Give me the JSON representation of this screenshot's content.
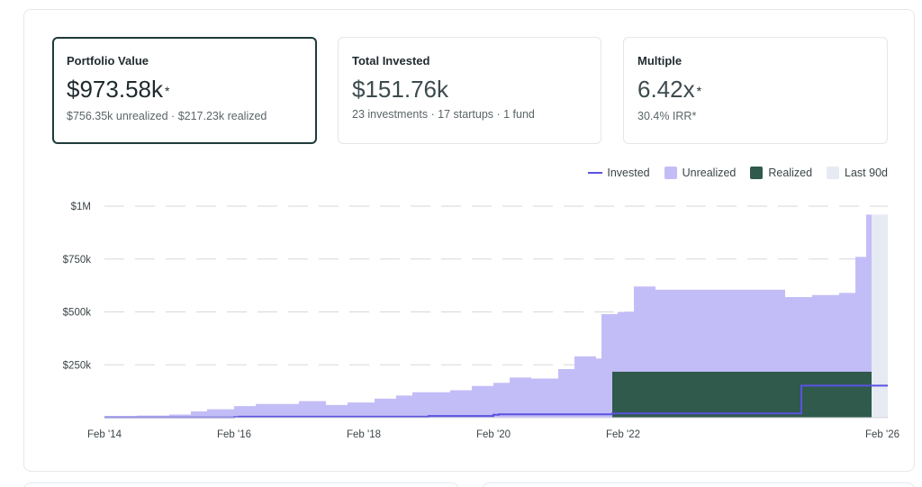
{
  "cards": [
    {
      "label": "Portfolio Value",
      "value": "$973.58k",
      "asterisk": "*",
      "sub": "$756.35k unrealized  · $217.23k realized",
      "selected": true
    },
    {
      "label": "Total Invested",
      "value": "$151.76k",
      "asterisk": "",
      "sub": "23 investments · 17 startups · 1 fund",
      "selected": false
    },
    {
      "label": "Multiple",
      "value": "6.42x",
      "asterisk": "*",
      "sub": "30.4% IRR*",
      "selected": false
    }
  ],
  "legend": {
    "invested": "Invested",
    "unrealized": "Unrealized",
    "realized": "Realized",
    "last90": "Last 90d"
  },
  "colors": {
    "invested": "#5a52e0",
    "unrealized": "#c3bdf7",
    "realized": "#2f5a4c",
    "last90": "#e6eaf3",
    "grid": "#d4d7da"
  },
  "chart_data": {
    "type": "area",
    "title": "",
    "xlabel": "",
    "ylabel": "",
    "x_ticks": [
      "Feb '14",
      "Feb '16",
      "Feb '18",
      "Feb '20",
      "Feb '22",
      "Feb '26"
    ],
    "y_ticks": [
      "$250k",
      "$500k",
      "$750k",
      "$1M"
    ],
    "ylim": [
      0,
      1000000
    ],
    "xlim": [
      "2014-02",
      "2026-03"
    ],
    "legend_position": "top-right",
    "grid": "horizontal-dashed",
    "last_90d_start": "2025-12",
    "series": [
      {
        "name": "Unrealized",
        "style": "step-area",
        "points": [
          [
            "2014-02",
            8000
          ],
          [
            "2014-08",
            10000
          ],
          [
            "2015-02",
            15000
          ],
          [
            "2015-06",
            30000
          ],
          [
            "2015-09",
            40000
          ],
          [
            "2016-02",
            55000
          ],
          [
            "2016-06",
            65000
          ],
          [
            "2017-02",
            78000
          ],
          [
            "2017-07",
            60000
          ],
          [
            "2017-11",
            72000
          ],
          [
            "2018-04",
            90000
          ],
          [
            "2018-08",
            105000
          ],
          [
            "2018-11",
            120000
          ],
          [
            "2019-06",
            130000
          ],
          [
            "2019-10",
            150000
          ],
          [
            "2020-02",
            165000
          ],
          [
            "2020-05",
            190000
          ],
          [
            "2020-09",
            185000
          ],
          [
            "2021-02",
            230000
          ],
          [
            "2021-05",
            290000
          ],
          [
            "2021-09",
            280000
          ],
          [
            "2021-10",
            490000
          ],
          [
            "2022-01",
            500000
          ],
          [
            "2022-04",
            620000
          ],
          [
            "2022-08",
            605000
          ],
          [
            "2023-04",
            605000
          ],
          [
            "2024-01",
            605000
          ],
          [
            "2024-08",
            570000
          ],
          [
            "2025-01",
            580000
          ],
          [
            "2025-06",
            590000
          ],
          [
            "2025-09",
            760000
          ],
          [
            "2025-11",
            960000
          ]
        ]
      },
      {
        "name": "Realized",
        "style": "step-area",
        "points": [
          [
            "2014-02",
            0
          ],
          [
            "2021-12",
            217230
          ],
          [
            "2025-12",
            0
          ]
        ]
      },
      {
        "name": "Invested",
        "style": "step-line",
        "points": [
          [
            "2014-02",
            1000
          ],
          [
            "2016-02",
            3000
          ],
          [
            "2016-03",
            5000
          ],
          [
            "2019-02",
            8000
          ],
          [
            "2020-02",
            14000
          ],
          [
            "2020-03",
            16000
          ],
          [
            "2021-12",
            20000
          ],
          [
            "2024-11",
            151760
          ]
        ]
      }
    ]
  }
}
